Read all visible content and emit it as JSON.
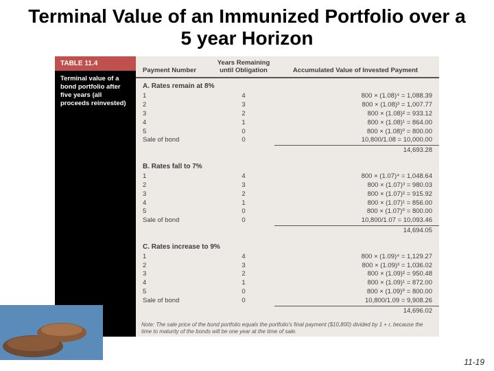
{
  "title": "Terminal Value of an Immunized Portfolio over a 5 year Horizon",
  "page_number": "11-19",
  "side": {
    "tab": "TABLE 11.4",
    "caption": "Terminal value of a bond portfolio after five years (all proceeds reinvested)"
  },
  "headers": {
    "payment": "Payment Number",
    "years": "Years Remaining until Obligation",
    "acc": "Accumulated Value of Invested Payment"
  },
  "sections": [
    {
      "label": "A. Rates remain at 8%",
      "rows": [
        {
          "p": "1",
          "y": "4",
          "acc": "800 × (1.08)⁴ =   1,088.39"
        },
        {
          "p": "2",
          "y": "3",
          "acc": "800 × (1.08)³ =   1,007.77"
        },
        {
          "p": "3",
          "y": "2",
          "acc": "800 × (1.08)² =     933.12"
        },
        {
          "p": "4",
          "y": "1",
          "acc": "800 × (1.08)¹ =     864.00"
        },
        {
          "p": "5",
          "y": "0",
          "acc": "800 × (1.08)⁰ =     800.00"
        },
        {
          "p": "Sale of bond",
          "y": "0",
          "acc": "10,800/1.08 =  10,000.00"
        }
      ],
      "total": "14,693.28"
    },
    {
      "label": "B. Rates fall to 7%",
      "rows": [
        {
          "p": "1",
          "y": "4",
          "acc": "800 × (1.07)⁴ =   1,048.64"
        },
        {
          "p": "2",
          "y": "3",
          "acc": "800 × (1.07)³ =     980.03"
        },
        {
          "p": "3",
          "y": "2",
          "acc": "800 × (1.07)² =     915.92"
        },
        {
          "p": "4",
          "y": "1",
          "acc": "800 × (1.07)¹ =     856.00"
        },
        {
          "p": "5",
          "y": "0",
          "acc": "800 × (1.07)⁰ =     800.00"
        },
        {
          "p": "Sale of bond",
          "y": "0",
          "acc": "10,800/1.07 =  10,093.46"
        }
      ],
      "total": "14,694.05"
    },
    {
      "label": "C. Rates increase to 9%",
      "rows": [
        {
          "p": "1",
          "y": "4",
          "acc": "800 × (1.09)⁴ =   1,129.27"
        },
        {
          "p": "2",
          "y": "3",
          "acc": "800 × (1.09)³ =   1,036.02"
        },
        {
          "p": "3",
          "y": "2",
          "acc": "800 × (1.09)² =     950.48"
        },
        {
          "p": "4",
          "y": "1",
          "acc": "800 × (1.09)¹ =     872.00"
        },
        {
          "p": "5",
          "y": "0",
          "acc": "800 × (1.09)⁰ =     800.00"
        },
        {
          "p": "Sale of bond",
          "y": "0",
          "acc": "10,800/1.09 =   9,908.26"
        }
      ],
      "total": "14,696.02"
    }
  ],
  "footnote": "Note: The sale price of the bond portfolio equals the portfolio's final payment ($10,800) divided by 1 + r, because the time to maturity of the bonds will be one year at the time of sale.",
  "floor": {
    "water": "#5b8bb8",
    "stone1": "#8a5a3a",
    "stone2": "#6e4a33"
  }
}
